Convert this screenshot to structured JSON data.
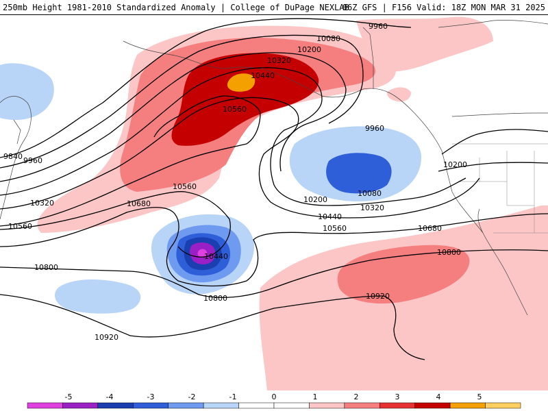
{
  "header": {
    "left": "250mb Height 1981-2010 Standardized Anomaly | College of DuPage NEXLAB",
    "right": "06Z GFS | F156 Valid: 18Z MON MAR 31 2025"
  },
  "contour_labels": [
    {
      "id": "c9960-ne",
      "text": "9960"
    },
    {
      "id": "c10080-n",
      "text": "10080"
    },
    {
      "id": "c10200-n",
      "text": "10200"
    },
    {
      "id": "c10320-n",
      "text": "10320"
    },
    {
      "id": "c10440-n",
      "text": "10440"
    },
    {
      "id": "c10560-n",
      "text": "10560"
    },
    {
      "id": "c9960-e",
      "text": "9960"
    },
    {
      "id": "c10080-e",
      "text": "10080"
    },
    {
      "id": "c10200-e",
      "text": "10200"
    },
    {
      "id": "c10320-e",
      "text": "10320"
    },
    {
      "id": "c10440-e",
      "text": "10440"
    },
    {
      "id": "c10200-coast",
      "text": "10200"
    },
    {
      "id": "c10560-c",
      "text": "10560"
    },
    {
      "id": "c10680-c",
      "text": "10680"
    },
    {
      "id": "c10560-mid",
      "text": "10560"
    },
    {
      "id": "c10680-e",
      "text": "10680"
    },
    {
      "id": "c10440-low",
      "text": "10440"
    },
    {
      "id": "c10800-w",
      "text": "10800"
    },
    {
      "id": "c10800-c",
      "text": "10800"
    },
    {
      "id": "c10800-e",
      "text": "10800"
    },
    {
      "id": "c10920-e",
      "text": "10920"
    },
    {
      "id": "c10920-s",
      "text": "10920"
    },
    {
      "id": "c9840-w",
      "text": "9840"
    },
    {
      "id": "c9960-w",
      "text": "9960"
    },
    {
      "id": "c10320-w",
      "text": "10320"
    },
    {
      "id": "c10560-w",
      "text": "10560"
    }
  ],
  "colorbar": {
    "ticks": [
      "-5",
      "-4",
      "-3",
      "-2",
      "-1",
      "0",
      "1",
      "2",
      "3",
      "4",
      "5"
    ],
    "colors": [
      "#e040e0",
      "#9a1fc4",
      "#1a3fb0",
      "#2e5fd8",
      "#6e9af0",
      "#b8d4f7",
      "#ffffff",
      "#ffffff",
      "#fcc6c6",
      "#f57e7e",
      "#e83232",
      "#c50000",
      "#f4a000",
      "#ffd060"
    ]
  }
}
